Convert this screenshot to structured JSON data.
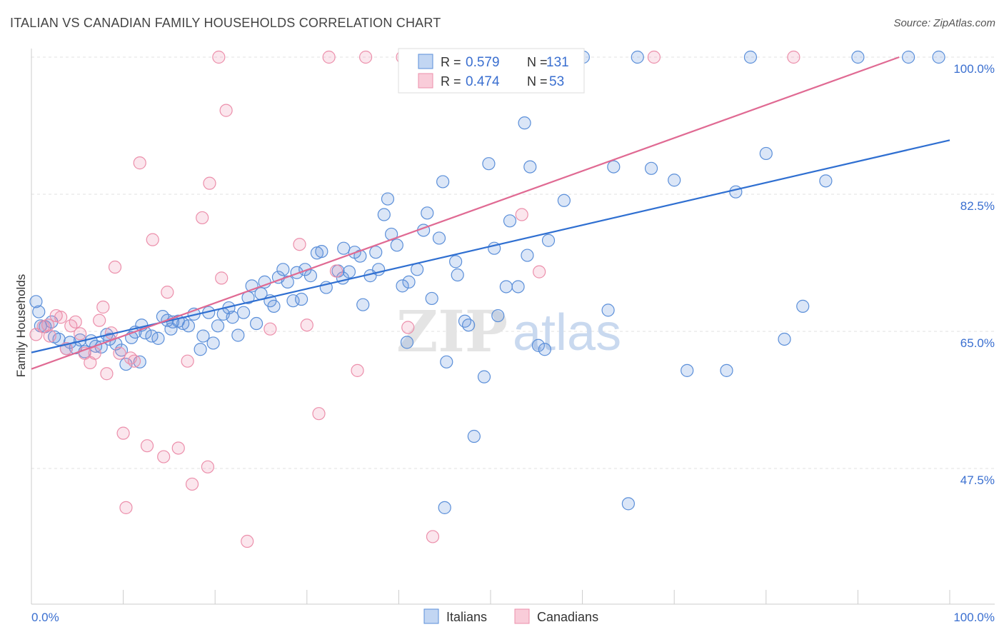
{
  "title": "ITALIAN VS CANADIAN FAMILY HOUSEHOLDS CORRELATION CHART",
  "source": "Source: ZipAtlas.com",
  "watermark": {
    "zip": "ZIP",
    "atlas": "atlas"
  },
  "colors": {
    "blue": "#5b8fd9",
    "blue_line": "#2f6fd1",
    "pink": "#ec8fab",
    "pink_line": "#e06a93"
  },
  "chart_data": {
    "type": "scatter",
    "title": "ITALIAN VS CANADIAN FAMILY HOUSEHOLDS CORRELATION CHART",
    "ylabel": "Family Households",
    "xlim": [
      0,
      100
    ],
    "ylim": [
      30,
      102.5
    ],
    "x_tick_labels": {
      "left": "0.0%",
      "right": "100.0%"
    },
    "y_ticks": [
      {
        "value": 47.5,
        "label": "47.5%"
      },
      {
        "value": 65.0,
        "label": "65.0%"
      },
      {
        "value": 82.5,
        "label": "82.5%"
      },
      {
        "value": 100.0,
        "label": "100.0%"
      }
    ],
    "grid": true,
    "legend_top": [
      {
        "r_label": "R =",
        "r_value": "0.579",
        "n_label": "N =",
        "n_value": "131"
      },
      {
        "r_label": "R =",
        "r_value": "0.474",
        "n_label": "N =",
        "n_value": "53"
      }
    ],
    "series": [
      {
        "name": "Italians",
        "color": "#5b8fd9",
        "trend": {
          "x": [
            0,
            100
          ],
          "y": [
            62.3,
            89.4
          ]
        },
        "points": [
          [
            0.5,
            68.8
          ],
          [
            0.8,
            67.5
          ],
          [
            1.0,
            65.7
          ],
          [
            1.5,
            65.6
          ],
          [
            2.2,
            66.2
          ],
          [
            2.5,
            64.3
          ],
          [
            3.0,
            64.0
          ],
          [
            3.8,
            62.8
          ],
          [
            4.2,
            63.6
          ],
          [
            4.8,
            62.9
          ],
          [
            5.3,
            63.9
          ],
          [
            5.8,
            62.4
          ],
          [
            6.5,
            63.8
          ],
          [
            7.0,
            63.1
          ],
          [
            7.6,
            63.0
          ],
          [
            8.2,
            64.6
          ],
          [
            8.5,
            64.0
          ],
          [
            9.2,
            63.4
          ],
          [
            9.8,
            62.6
          ],
          [
            10.3,
            60.8
          ],
          [
            10.9,
            64.2
          ],
          [
            11.3,
            64.9
          ],
          [
            11.8,
            61.1
          ],
          [
            12.4,
            64.8
          ],
          [
            13.1,
            64.4
          ],
          [
            13.8,
            64.1
          ],
          [
            14.3,
            66.9
          ],
          [
            14.8,
            66.4
          ],
          [
            15.4,
            66.2
          ],
          [
            16.0,
            66.3
          ],
          [
            16.5,
            66.0
          ],
          [
            17.1,
            65.7
          ],
          [
            17.7,
            67.2
          ],
          [
            18.4,
            62.7
          ],
          [
            18.7,
            64.4
          ],
          [
            19.3,
            67.4
          ],
          [
            19.8,
            63.5
          ],
          [
            20.3,
            65.7
          ],
          [
            20.9,
            67.2
          ],
          [
            21.5,
            68.0
          ],
          [
            21.9,
            66.8
          ],
          [
            22.5,
            64.5
          ],
          [
            23.1,
            67.4
          ],
          [
            23.6,
            69.3
          ],
          [
            24.0,
            70.8
          ],
          [
            24.5,
            66.0
          ],
          [
            25.0,
            69.8
          ],
          [
            25.4,
            71.3
          ],
          [
            26.0,
            68.9
          ],
          [
            26.4,
            68.2
          ],
          [
            26.9,
            71.9
          ],
          [
            27.4,
            72.9
          ],
          [
            27.9,
            71.3
          ],
          [
            28.5,
            68.9
          ],
          [
            28.9,
            72.5
          ],
          [
            29.4,
            69.1
          ],
          [
            29.8,
            72.9
          ],
          [
            30.4,
            72.1
          ],
          [
            31.1,
            75.0
          ],
          [
            31.6,
            75.2
          ],
          [
            32.1,
            70.6
          ],
          [
            33.4,
            72.7
          ],
          [
            34.0,
            75.6
          ],
          [
            34.6,
            72.6
          ],
          [
            35.2,
            75.1
          ],
          [
            35.8,
            74.6
          ],
          [
            36.1,
            68.4
          ],
          [
            36.9,
            72.1
          ],
          [
            37.5,
            75.1
          ],
          [
            37.8,
            72.9
          ],
          [
            38.4,
            79.9
          ],
          [
            38.8,
            81.9
          ],
          [
            39.2,
            77.4
          ],
          [
            39.8,
            76.0
          ],
          [
            40.4,
            70.8
          ],
          [
            40.9,
            63.6
          ],
          [
            41.1,
            71.3
          ],
          [
            42.0,
            72.9
          ],
          [
            42.7,
            77.9
          ],
          [
            43.1,
            80.1
          ],
          [
            43.6,
            69.2
          ],
          [
            44.4,
            76.9
          ],
          [
            44.8,
            84.1
          ],
          [
            45.2,
            61.1
          ],
          [
            46.2,
            73.9
          ],
          [
            46.4,
            72.2
          ],
          [
            47.2,
            66.3
          ],
          [
            47.6,
            65.8
          ],
          [
            48.2,
            51.6
          ],
          [
            49.3,
            59.2
          ],
          [
            49.8,
            86.4
          ],
          [
            50.4,
            75.6
          ],
          [
            50.8,
            67.0
          ],
          [
            51.7,
            70.7
          ],
          [
            52.1,
            79.1
          ],
          [
            53.0,
            70.7
          ],
          [
            53.7,
            91.6
          ],
          [
            54.0,
            74.7
          ],
          [
            54.3,
            86.0
          ],
          [
            55.9,
            62.7
          ],
          [
            56.3,
            76.6
          ],
          [
            58.0,
            81.7
          ],
          [
            58.8,
            100.0
          ],
          [
            60.1,
            100.0
          ],
          [
            66.0,
            100.0
          ],
          [
            62.8,
            67.7
          ],
          [
            63.4,
            86.0
          ],
          [
            65.0,
            43.0
          ],
          [
            67.5,
            85.8
          ],
          [
            70.0,
            84.3
          ],
          [
            71.4,
            60.0
          ],
          [
            75.7,
            60.0
          ],
          [
            76.7,
            82.8
          ],
          [
            78.3,
            100.0
          ],
          [
            80.0,
            87.7
          ],
          [
            82.0,
            64.0
          ],
          [
            84.0,
            68.2
          ],
          [
            86.5,
            84.2
          ],
          [
            90.0,
            100.0
          ],
          [
            95.5,
            100.0
          ],
          [
            98.8,
            100.0
          ],
          [
            45.0,
            42.5
          ],
          [
            55.2,
            63.2
          ],
          [
            33.9,
            71.8
          ],
          [
            15.2,
            65.3
          ],
          [
            12.0,
            65.8
          ]
        ]
      },
      {
        "name": "Canadians",
        "color": "#ec8fab",
        "trend": {
          "x": [
            0,
            94.5
          ],
          "y": [
            60.2,
            100.0
          ]
        },
        "points": [
          [
            0.5,
            64.6
          ],
          [
            1.3,
            65.6
          ],
          [
            1.8,
            65.8
          ],
          [
            2.0,
            64.4
          ],
          [
            2.7,
            67.0
          ],
          [
            3.2,
            66.8
          ],
          [
            3.8,
            62.8
          ],
          [
            4.3,
            65.7
          ],
          [
            4.8,
            66.2
          ],
          [
            5.3,
            64.7
          ],
          [
            5.8,
            62.2
          ],
          [
            6.4,
            61.0
          ],
          [
            6.9,
            62.2
          ],
          [
            7.4,
            66.4
          ],
          [
            7.8,
            68.1
          ],
          [
            8.2,
            59.6
          ],
          [
            8.7,
            64.8
          ],
          [
            9.1,
            73.2
          ],
          [
            9.6,
            62.2
          ],
          [
            10.0,
            52.0
          ],
          [
            10.3,
            42.5
          ],
          [
            10.8,
            61.6
          ],
          [
            11.2,
            61.2
          ],
          [
            11.8,
            86.5
          ],
          [
            12.6,
            50.4
          ],
          [
            13.2,
            76.7
          ],
          [
            14.4,
            49.0
          ],
          [
            14.8,
            70.0
          ],
          [
            16.0,
            50.1
          ],
          [
            17.0,
            61.2
          ],
          [
            17.5,
            45.5
          ],
          [
            18.6,
            79.5
          ],
          [
            19.2,
            47.7
          ],
          [
            19.4,
            83.9
          ],
          [
            20.4,
            100.0
          ],
          [
            20.7,
            71.8
          ],
          [
            21.2,
            93.2
          ],
          [
            23.5,
            38.2
          ],
          [
            29.2,
            76.1
          ],
          [
            30.0,
            65.8
          ],
          [
            31.3,
            54.5
          ],
          [
            32.4,
            100.0
          ],
          [
            33.2,
            72.7
          ],
          [
            35.5,
            60.0
          ],
          [
            36.4,
            100.0
          ],
          [
            40.4,
            100.0
          ],
          [
            41.0,
            65.5
          ],
          [
            43.7,
            38.8
          ],
          [
            53.4,
            79.9
          ],
          [
            55.3,
            72.6
          ],
          [
            67.8,
            100.0
          ],
          [
            83.0,
            100.0
          ],
          [
            26.0,
            65.3
          ]
        ]
      }
    ]
  },
  "legend_bottom": [
    "Italians",
    "Canadians"
  ]
}
